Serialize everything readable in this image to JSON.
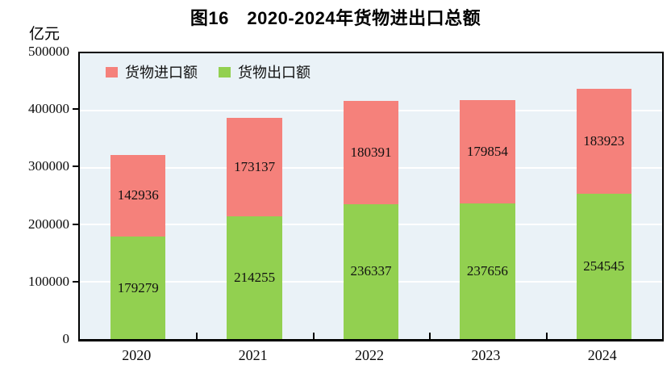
{
  "title": "图16　2020-2024年货物进出口总额",
  "unit_label": "亿元",
  "legend": [
    {
      "label": "货物进口额",
      "color": "#F5817B",
      "name": "imports"
    },
    {
      "label": "货物出口额",
      "color": "#92D050",
      "name": "exports"
    }
  ],
  "colors": {
    "import_bar": "#F5817B",
    "export_bar": "#92D050",
    "plot_background": "#EAF2F7",
    "gridline": "#FFFFFF",
    "axis": "#000000"
  },
  "chart_data": {
    "type": "bar",
    "stacked": true,
    "title": "图16　2020-2024年货物进出口总额",
    "ylabel": "亿元",
    "xlabel": "",
    "categories": [
      "2020",
      "2021",
      "2022",
      "2023",
      "2024"
    ],
    "series": [
      {
        "name": "货物出口额",
        "color": "#92D050",
        "values": [
          179279,
          214255,
          236337,
          237656,
          254545
        ]
      },
      {
        "name": "货物进口额",
        "color": "#F5817B",
        "values": [
          142936,
          173137,
          180391,
          179854,
          183923
        ]
      }
    ],
    "ylim": [
      0,
      500000
    ],
    "yticks": [
      0,
      100000,
      200000,
      300000,
      400000,
      500000
    ],
    "grid": true,
    "legend_position": "inside-top-left",
    "value_labels": "centered-in-segment"
  }
}
